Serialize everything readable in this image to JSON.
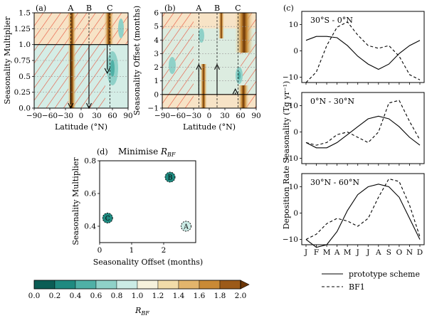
{
  "panel_labels": {
    "a": "(a)",
    "b": "(b)",
    "c": "(c)",
    "d": "(d)"
  },
  "region_labels": [
    "A",
    "B",
    "C"
  ],
  "colorbar": {
    "label": "R_BF",
    "ticks": [
      "0.0",
      "0.2",
      "0.4",
      "0.6",
      "0.8",
      "1.0",
      "1.2",
      "1.4",
      "1.6",
      "1.8",
      "2.0"
    ],
    "colors": [
      "#0b5d55",
      "#1f8a80",
      "#4fb0a6",
      "#8fd1c8",
      "#cbebe5",
      "#f6f1dc",
      "#f2dca9",
      "#e3b56c",
      "#c98a35",
      "#9c5a18",
      "#6b3506"
    ]
  },
  "chart_data": [
    {
      "id": "a",
      "type": "heatmap",
      "title": "",
      "xlabel": "Latitude (°N)",
      "ylabel": "Seasonality Multiplier",
      "xlim": [
        -90,
        90
      ],
      "ylim": [
        0,
        1.5
      ],
      "xticks": [
        -90,
        -60,
        -30,
        0,
        30,
        60,
        90
      ],
      "yticks": [
        0.0,
        0.25,
        0.5,
        0.75,
        1.0,
        1.25,
        1.5
      ],
      "reference_line_y": 1.0,
      "region_lines_x": [
        -20,
        15,
        55
      ],
      "region_labels": [
        "A",
        "B",
        "C"
      ],
      "arrows": [
        {
          "region": "A",
          "x": -20,
          "from_y": 1.0,
          "to_y": 0.0
        },
        {
          "region": "B",
          "x": 15,
          "from_y": 1.0,
          "to_y": 0.0
        },
        {
          "region": "C",
          "x": 50,
          "from_y": 1.0,
          "to_y": 0.55
        }
      ]
    },
    {
      "id": "b",
      "type": "heatmap",
      "title": "",
      "xlabel": "Latitude (°N)",
      "ylabel": "Seasonality Offset (months)",
      "xlim": [
        -90,
        90
      ],
      "ylim": [
        -1,
        6
      ],
      "xticks": [
        -90,
        -60,
        -30,
        0,
        30,
        60,
        90
      ],
      "yticks": [
        -1,
        0,
        1,
        2,
        3,
        4,
        5,
        6
      ],
      "reference_line_y": 0,
      "region_lines_x": [
        -20,
        15,
        55
      ],
      "region_labels": [
        "A",
        "B",
        "C"
      ],
      "arrows": [
        {
          "region": "A",
          "x": -20,
          "from_y": 0,
          "to_y": 2.2
        },
        {
          "region": "B",
          "x": 15,
          "from_y": 0,
          "to_y": 2.2
        },
        {
          "region": "C",
          "x": 50,
          "from_y": 0,
          "to_y": 0.4
        }
      ]
    },
    {
      "id": "c",
      "type": "line",
      "title": "",
      "ylabel": "Deposition Rate Seasonality (Tg yr⁻¹)",
      "x": [
        "J",
        "F",
        "M",
        "A",
        "M",
        "J",
        "J",
        "A",
        "S",
        "O",
        "N",
        "D"
      ],
      "ylim": [
        -12,
        15
      ],
      "yticks": [
        -10,
        0,
        10
      ],
      "legend": {
        "position": "below",
        "entries": [
          "prototype scheme",
          "BF1"
        ]
      },
      "subplots": [
        {
          "label": "30°S - 0°N",
          "series": [
            {
              "name": "prototype scheme",
              "values": [
                4,
                5.5,
                5.5,
                5,
                2,
                -2,
                -5,
                -7,
                -5,
                -1,
                2,
                4
              ]
            },
            {
              "name": "BF1",
              "values": [
                -12,
                -8,
                2,
                9,
                11,
                6,
                2,
                1,
                2,
                -2,
                -9,
                -11
              ]
            }
          ]
        },
        {
          "label": "0°N - 30°N",
          "series": [
            {
              "name": "prototype scheme",
              "values": [
                -4,
                -6,
                -6,
                -4,
                -1,
                2,
                5,
                6,
                5,
                2,
                -2,
                -5
              ]
            },
            {
              "name": "BF1",
              "values": [
                -4,
                -5,
                -4,
                -1,
                0,
                -2,
                -4,
                0,
                11,
                12,
                4,
                -3
              ]
            }
          ]
        },
        {
          "label": "30°N - 60°N",
          "series": [
            {
              "name": "prototype scheme",
              "values": [
                -10,
                -13,
                -12,
                -7,
                1,
                7,
                10,
                11,
                10,
                6,
                -2,
                -10
              ]
            },
            {
              "name": "BF1",
              "values": [
                -10,
                -8,
                -4,
                -2,
                -3,
                -5,
                -2,
                6,
                13,
                12,
                3,
                -9
              ]
            }
          ]
        }
      ]
    },
    {
      "id": "d",
      "type": "scatter",
      "title": "Minimise R_BF",
      "xlabel": "Seasonality Offset (months)",
      "ylabel": "Seasonality Multiplier",
      "xlim": [
        0,
        3
      ],
      "ylim": [
        0.3,
        0.8
      ],
      "xticks": [
        0,
        1,
        2
      ],
      "yticks": [
        0.4,
        0.6,
        0.8
      ],
      "points": [
        {
          "label": "A",
          "x": 2.7,
          "y": 0.4,
          "color": "#cbebe5"
        },
        {
          "label": "B",
          "x": 2.2,
          "y": 0.7,
          "color": "#1f8a80"
        },
        {
          "label": "C",
          "x": 0.25,
          "y": 0.45,
          "color": "#1f8a80"
        }
      ]
    }
  ]
}
